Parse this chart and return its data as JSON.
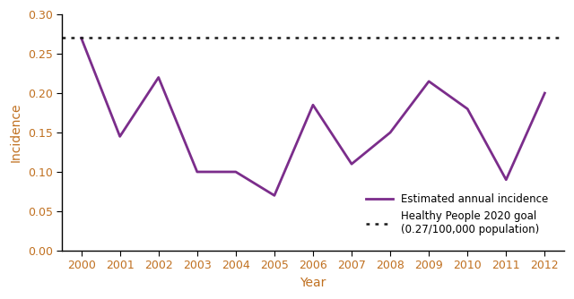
{
  "years": [
    2000,
    2001,
    2002,
    2003,
    2004,
    2005,
    2006,
    2007,
    2008,
    2009,
    2010,
    2011,
    2012
  ],
  "incidence": [
    0.27,
    0.145,
    0.22,
    0.1,
    0.1,
    0.07,
    0.185,
    0.11,
    0.15,
    0.215,
    0.18,
    0.09,
    0.2
  ],
  "hp2020_goal": 0.27,
  "line_color": "#7B2D8B",
  "goal_color": "#1a1a1a",
  "tick_label_color": "#C07020",
  "axis_label_color": "#C07020",
  "ylabel": "Incidence",
  "xlabel": "Year",
  "ylim": [
    0.0,
    0.3
  ],
  "yticks": [
    0.0,
    0.05,
    0.1,
    0.15,
    0.2,
    0.25,
    0.3
  ],
  "legend_label_line": "Estimated annual incidence",
  "legend_label_goal": "Healthy People 2020 goal\n(0.27/100,000 population)",
  "line_width": 2.0,
  "goal_linewidth": 1.8,
  "tick_fontsize": 9,
  "label_fontsize": 10
}
